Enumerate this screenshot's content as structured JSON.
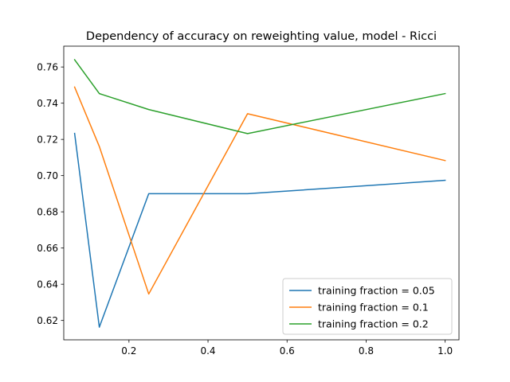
{
  "chart_data": {
    "type": "line",
    "title": "Dependency of accuracy on reweighting value, model - Ricci",
    "xlabel": "",
    "ylabel": "",
    "xlim": [
      0.035,
      1.035
    ],
    "ylim": [
      0.6093,
      0.7715
    ],
    "x_ticks": [
      0.2,
      0.4,
      0.6,
      0.8,
      1.0
    ],
    "x_tick_labels": [
      "0.2",
      "0.4",
      "0.6",
      "0.8",
      "1.0"
    ],
    "y_ticks": [
      0.62,
      0.64,
      0.66,
      0.68,
      0.7,
      0.72,
      0.74,
      0.76
    ],
    "y_tick_labels": [
      "0.62",
      "0.64",
      "0.66",
      "0.68",
      "0.70",
      "0.72",
      "0.74",
      "0.76"
    ],
    "grid": false,
    "legend_position": "lower-right",
    "series": [
      {
        "name": "training fraction = 0.05",
        "color": "#1f77b4",
        "x": [
          0.0625,
          0.125,
          0.25,
          0.5,
          1.0
        ],
        "y": [
          0.7233,
          0.6163,
          0.69,
          0.69,
          0.6974
        ]
      },
      {
        "name": "training fraction = 0.1",
        "color": "#ff7f0e",
        "x": [
          0.0625,
          0.125,
          0.25,
          0.5,
          1.0
        ],
        "y": [
          0.7489,
          0.7161,
          0.6346,
          0.7342,
          0.7083
        ]
      },
      {
        "name": "training fraction = 0.2",
        "color": "#2ca02c",
        "x": [
          0.0625,
          0.125,
          0.25,
          0.5,
          1.0
        ],
        "y": [
          0.764,
          0.7453,
          0.7365,
          0.7232,
          0.7453
        ]
      }
    ]
  }
}
